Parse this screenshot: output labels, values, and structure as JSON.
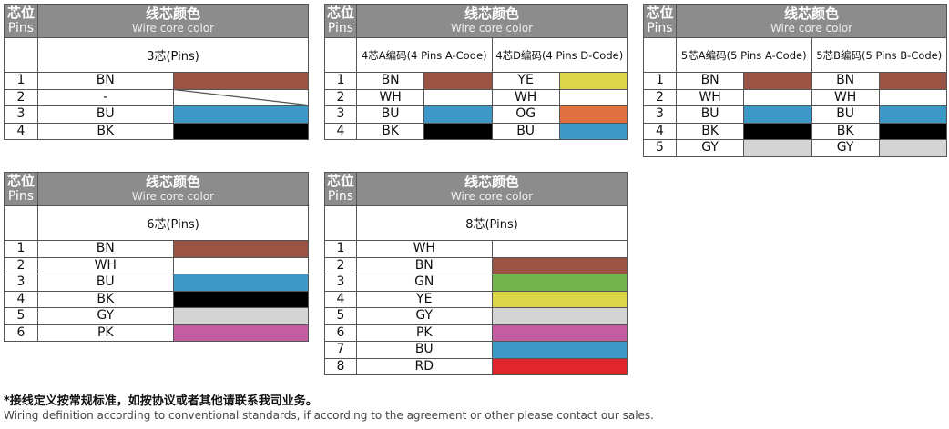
{
  "header": {
    "pins_cn": "芯位",
    "pins_en": "Pins",
    "color_cn": "线芯颜色",
    "color_en": "Wire core color"
  },
  "colors": {
    "BN": "#9b5444",
    "WH": "#ffffff",
    "BU": "#3d97c7",
    "BK": "#000000",
    "YE": "#dcd54a",
    "OG": "#e07040",
    "GY": "#d4d4d4",
    "PK": "#c35ca0",
    "GN": "#72b54a",
    "RD": "#e0262a",
    "-": "diag"
  },
  "tables": [
    {
      "id": "3pin",
      "groups": [
        {
          "title": "3芯(Pins)",
          "codes": [
            "BN",
            "-",
            "BU",
            "BK"
          ]
        }
      ],
      "pins": [
        "1",
        "2",
        "3",
        "4"
      ]
    },
    {
      "id": "4pin",
      "groups": [
        {
          "title": "4芯A编码(4 Pins A-Code)",
          "codes": [
            "BN",
            "WH",
            "BU",
            "BK"
          ]
        },
        {
          "title": "4芯D编码(4 Pins D-Code)",
          "codes": [
            "YE",
            "WH",
            "OG",
            "BU"
          ]
        }
      ],
      "pins": [
        "1",
        "2",
        "3",
        "4"
      ]
    },
    {
      "id": "5pin",
      "groups": [
        {
          "title": "5芯A编码(5 Pins A-Code)",
          "codes": [
            "BN",
            "WH",
            "BU",
            "BK",
            "GY"
          ]
        },
        {
          "title": "5芯B编码(5 Pins B-Code)",
          "codes": [
            "BN",
            "WH",
            "BU",
            "BK",
            "GY"
          ]
        }
      ],
      "pins": [
        "1",
        "2",
        "3",
        "4",
        "5"
      ]
    },
    {
      "id": "6pin",
      "groups": [
        {
          "title": "6芯(Pins)",
          "codes": [
            "BN",
            "WH",
            "BU",
            "BK",
            "GY",
            "PK"
          ]
        }
      ],
      "pins": [
        "1",
        "2",
        "3",
        "4",
        "5",
        "6"
      ]
    },
    {
      "id": "8pin",
      "groups": [
        {
          "title": "8芯(Pins)",
          "codes": [
            "WH",
            "BN",
            "GN",
            "YE",
            "GY",
            "PK",
            "BU",
            "RD"
          ]
        }
      ],
      "pins": [
        "1",
        "2",
        "3",
        "4",
        "5",
        "6",
        "7",
        "8"
      ]
    }
  ],
  "footer": {
    "note_cn": "*接线定义按常规标准，如按协议或者其他请联系我司业务。",
    "note_en": "Wiring definition according to conventional standards, if according to the agreement or other please contact our sales."
  }
}
